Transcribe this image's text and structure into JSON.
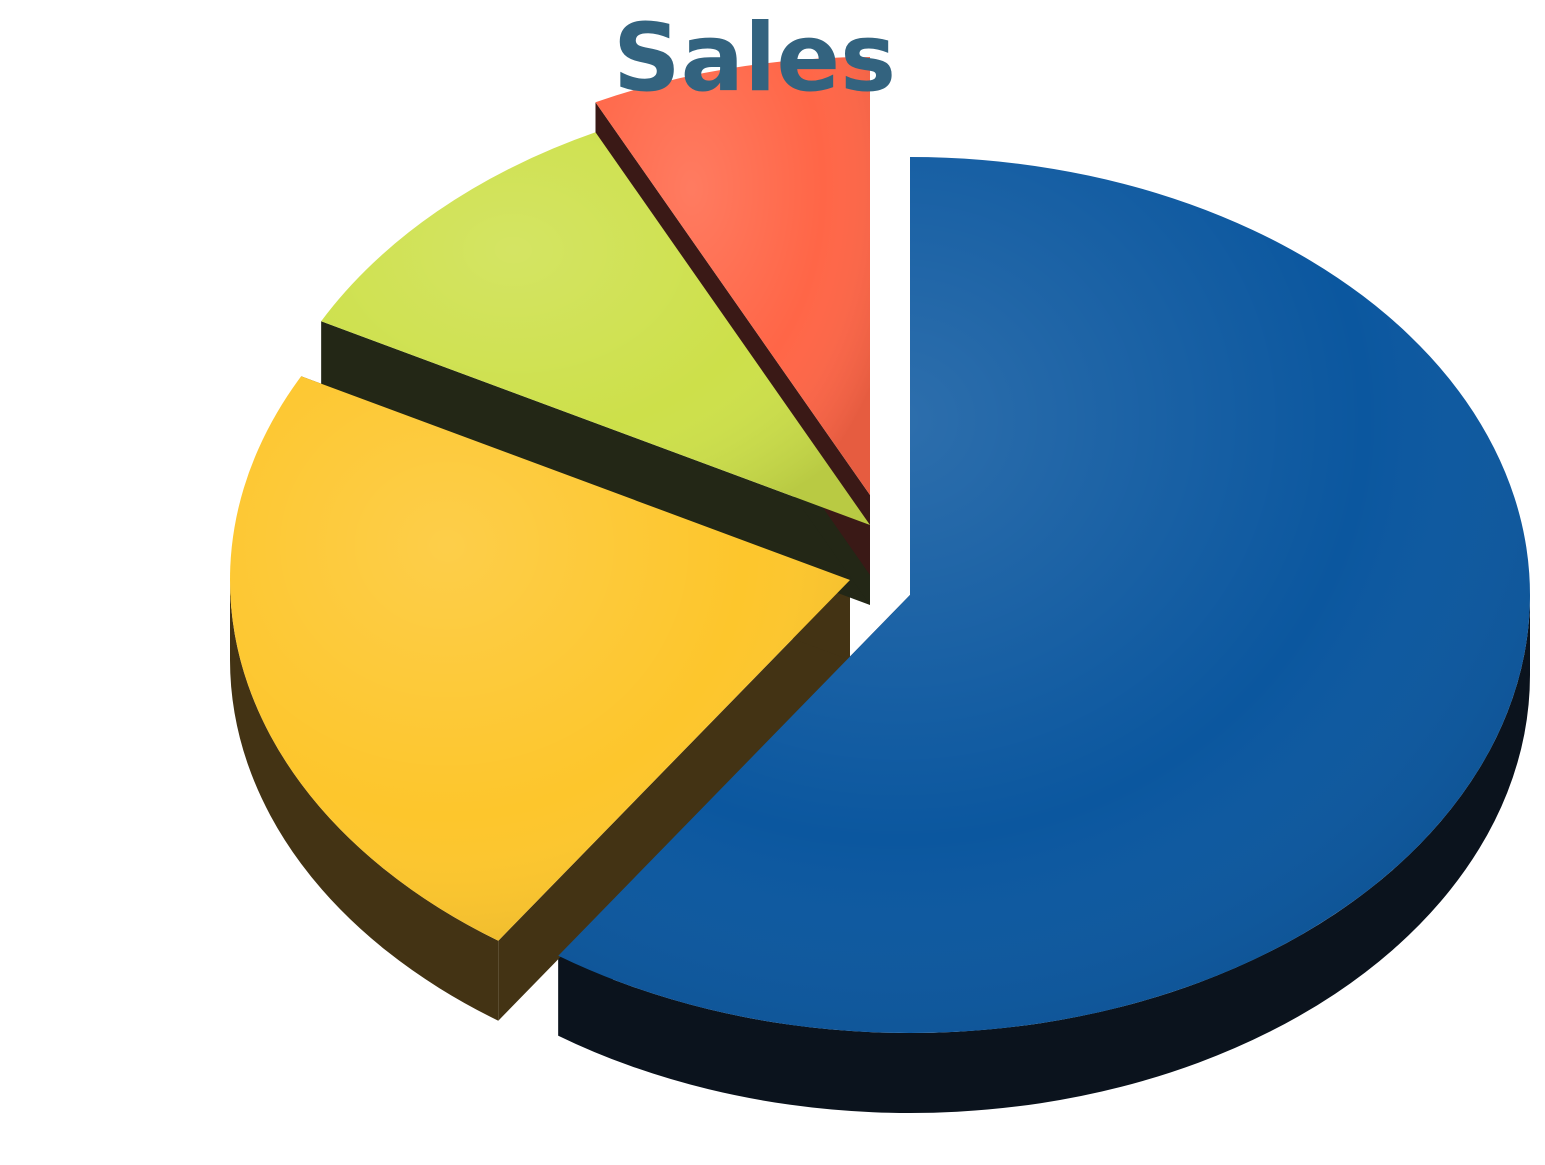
{
  "chart_data": {
    "type": "pie",
    "style": "3d-exploded",
    "title": "Sales",
    "legend": "none",
    "slices": [
      {
        "value": 59.6,
        "color": "#0b579f",
        "side_color": "#0b131d"
      },
      {
        "value": 23.1,
        "color": "#fdc62c",
        "side_color": "#433314"
      },
      {
        "value": 10.0,
        "color": "#cde04a",
        "side_color": "#232716"
      },
      {
        "value": 7.3,
        "color": "#ff6647",
        "side_color": "#3a1916"
      }
    ]
  },
  "colors": {
    "title": "#33637f",
    "background": "#ffffff"
  }
}
